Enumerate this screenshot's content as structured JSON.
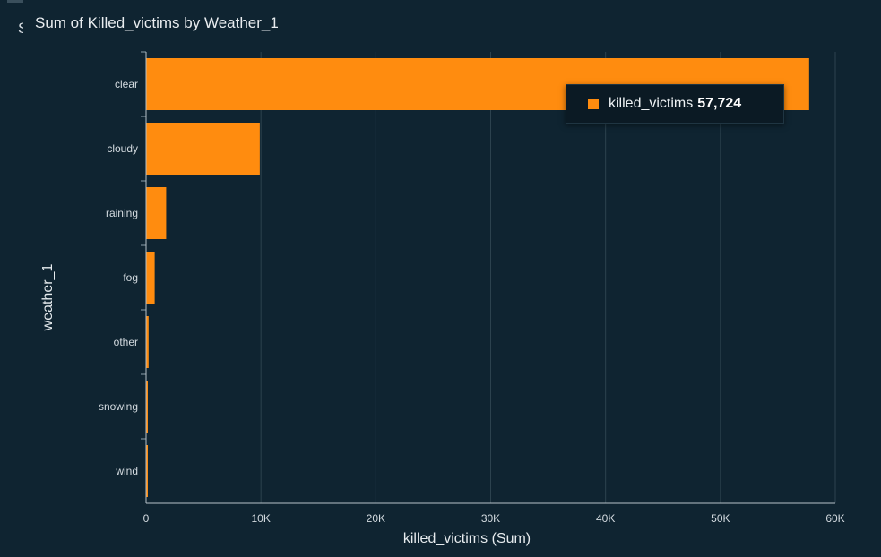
{
  "visual": {
    "title_cut": "S",
    "title": "Sum of Killed_victims by Weather_1"
  },
  "tooltip": {
    "label": "killed_victims",
    "value": "57,724",
    "swatch_color": "#ff8c0f"
  },
  "chart_data": {
    "type": "bar",
    "orientation": "horizontal",
    "title": "Sum of Killed_victims by Weather_1",
    "xlabel": "killed_victims (Sum)",
    "ylabel": "weather_1",
    "categories": [
      "clear",
      "cloudy",
      "raining",
      "fog",
      "other",
      "snowing",
      "wind"
    ],
    "values": [
      57724,
      9900,
      1750,
      750,
      220,
      95,
      90
    ],
    "xlim": [
      0,
      60000
    ],
    "xticks": [
      0,
      10000,
      20000,
      30000,
      40000,
      50000,
      60000
    ],
    "xtick_labels": [
      "0",
      "10K",
      "20K",
      "30K",
      "40K",
      "50K",
      "60K"
    ],
    "grid": true,
    "bar_color": "#ff8c0f",
    "background_color": "#0f2431",
    "grid_color": "#2c424e"
  }
}
